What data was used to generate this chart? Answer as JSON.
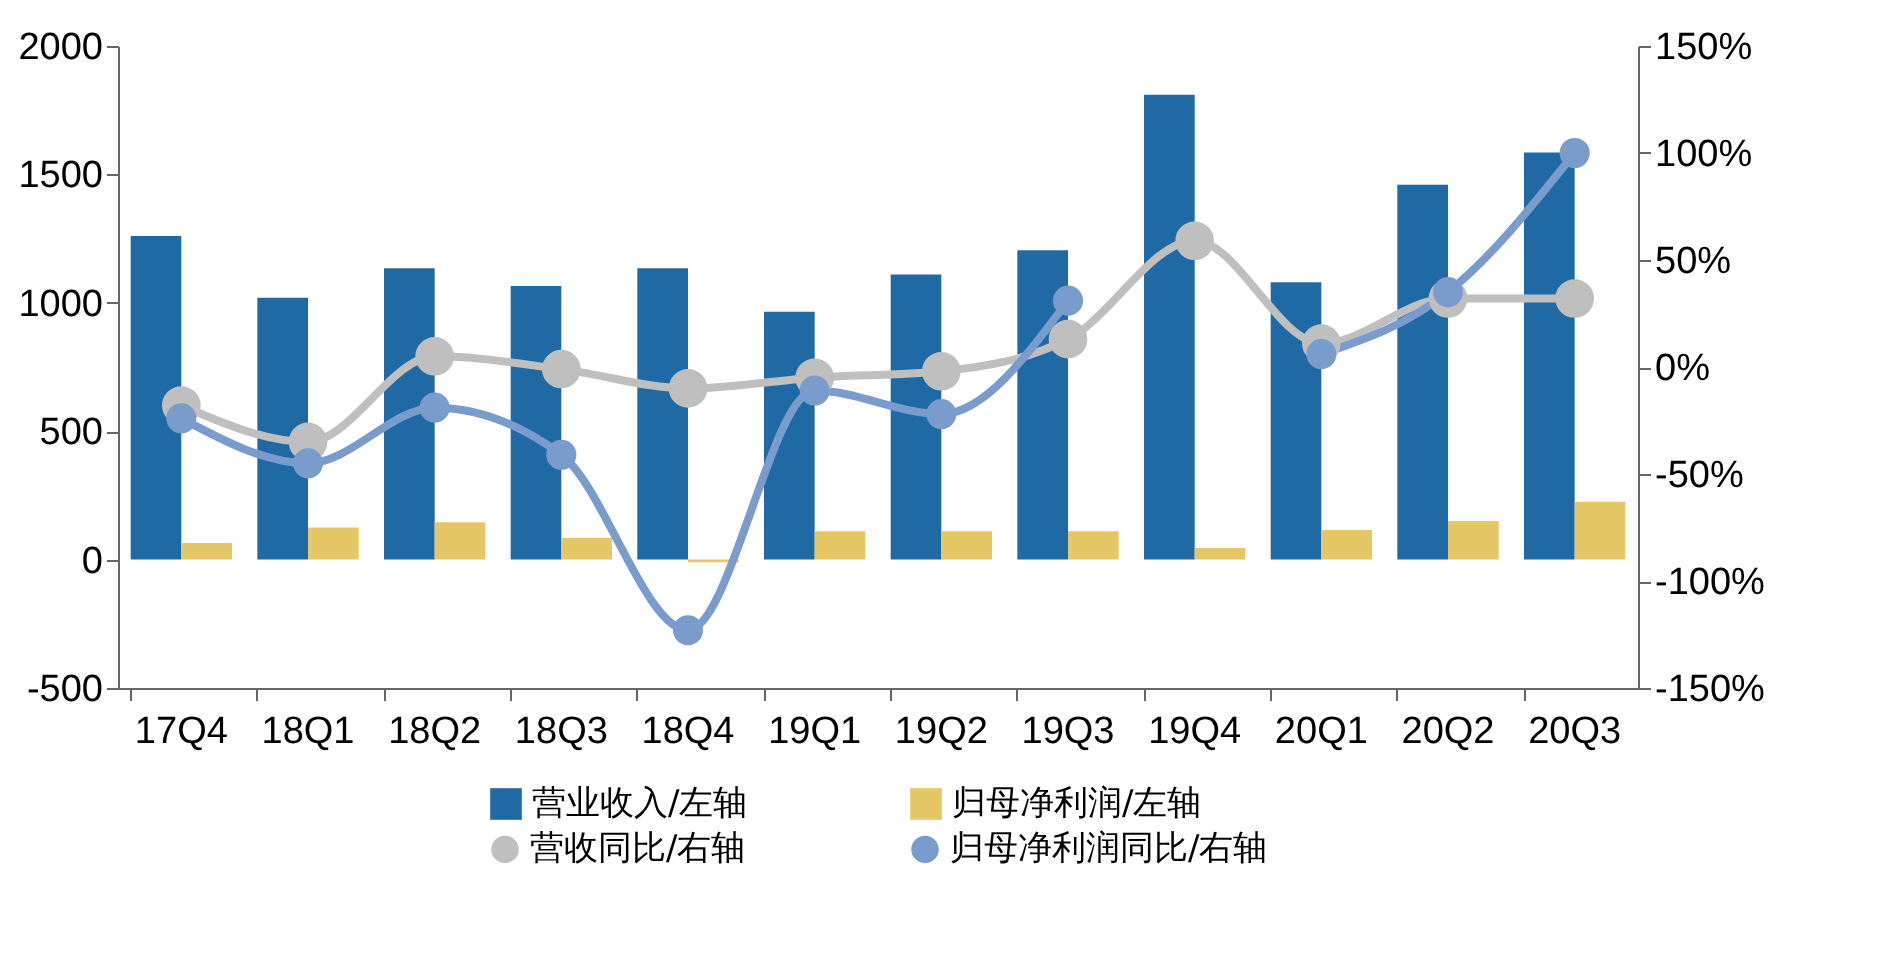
{
  "chart_data": {
    "type": "bar",
    "categories": [
      "17Q4",
      "18Q1",
      "18Q2",
      "18Q3",
      "18Q4",
      "19Q1",
      "19Q2",
      "19Q3",
      "19Q4",
      "20Q1",
      "20Q2",
      "20Q3"
    ],
    "series": [
      {
        "name": "营业收入/左轴",
        "color": "#1f6aa5",
        "values": [
          1260,
          1020,
          1135,
          1065,
          1135,
          965,
          1110,
          1205,
          1810,
          1080,
          1460,
          1585
        ]
      },
      {
        "name": "归母净利润/左轴",
        "color": "#e5c865",
        "values": [
          65,
          125,
          145,
          85,
          -10,
          110,
          110,
          110,
          45,
          115,
          150,
          225
        ]
      },
      {
        "name": "营收同比/右轴",
        "type": "line",
        "axis": "y2",
        "color": "#bfbfbf",
        "values": [
          -18,
          -35,
          5,
          -1,
          -10,
          -5,
          -2,
          13,
          59,
          11,
          32,
          32
        ]
      },
      {
        "name": "归母净利润同比/右轴",
        "type": "line",
        "axis": "y2",
        "color": "#7a9ccc",
        "values": [
          -24,
          -45,
          -19,
          -41,
          -123,
          -11,
          -22,
          31,
          null,
          6,
          35,
          100
        ]
      }
    ],
    "ylim": [
      -500,
      2000
    ],
    "yticks": [
      -500,
      0,
      500,
      1000,
      1500,
      2000
    ],
    "y2lim": [
      -150,
      150
    ],
    "y2ticks": [
      {
        "value": -150,
        "label": "-150%"
      },
      {
        "value": -100,
        "label": "-100%"
      },
      {
        "value": -50,
        "label": "-50%"
      },
      {
        "value": 0,
        "label": "0%"
      },
      {
        "value": 50,
        "label": "50%"
      },
      {
        "value": 100,
        "label": "100%"
      },
      {
        "value": 150,
        "label": "150%"
      }
    ],
    "legend": "bottom",
    "marker": "circle",
    "line_style": "solid",
    "grid": false
  }
}
